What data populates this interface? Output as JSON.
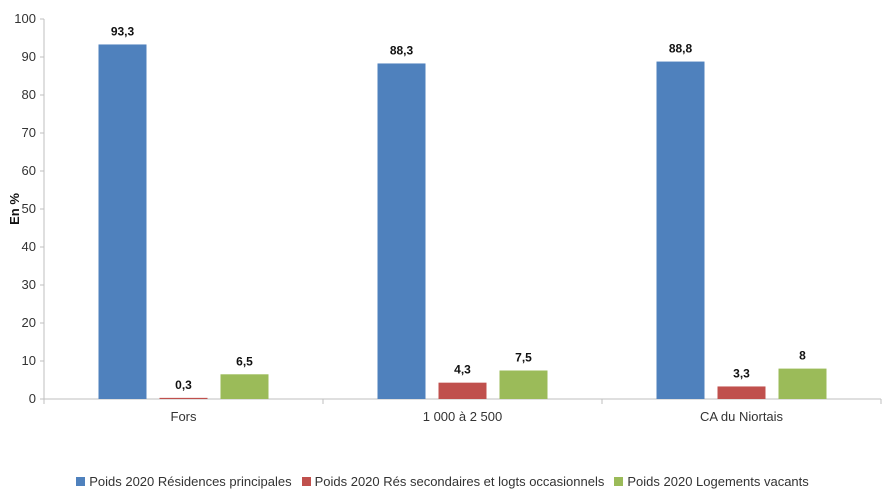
{
  "chart_data": {
    "type": "bar",
    "categories": [
      "Fors",
      "1 000 à 2 500",
      "CA du Niortais"
    ],
    "series": [
      {
        "name": "Poids 2020 Résidences principales",
        "values": [
          93.3,
          88.3,
          88.8
        ],
        "labels": [
          "93,3",
          "88,3",
          "88,8"
        ],
        "color": "#4F81BD"
      },
      {
        "name": "Poids 2020 Rés secondaires et logts occasionnels",
        "values": [
          0.3,
          4.3,
          3.3
        ],
        "labels": [
          "0,3",
          "4,3",
          "3,3"
        ],
        "color": "#C0504D"
      },
      {
        "name": "Poids 2020 Logements vacants",
        "values": [
          6.5,
          7.5,
          8
        ],
        "labels": [
          "6,5",
          "7,5",
          "8"
        ],
        "color": "#9BBB59"
      }
    ],
    "ylabel": "En %",
    "xlabel": "",
    "title": "",
    "ylim": [
      0,
      100
    ],
    "yticks": [
      0,
      10,
      20,
      30,
      40,
      50,
      60,
      70,
      80,
      90,
      100
    ],
    "grid": false,
    "legend_position": "bottom"
  }
}
